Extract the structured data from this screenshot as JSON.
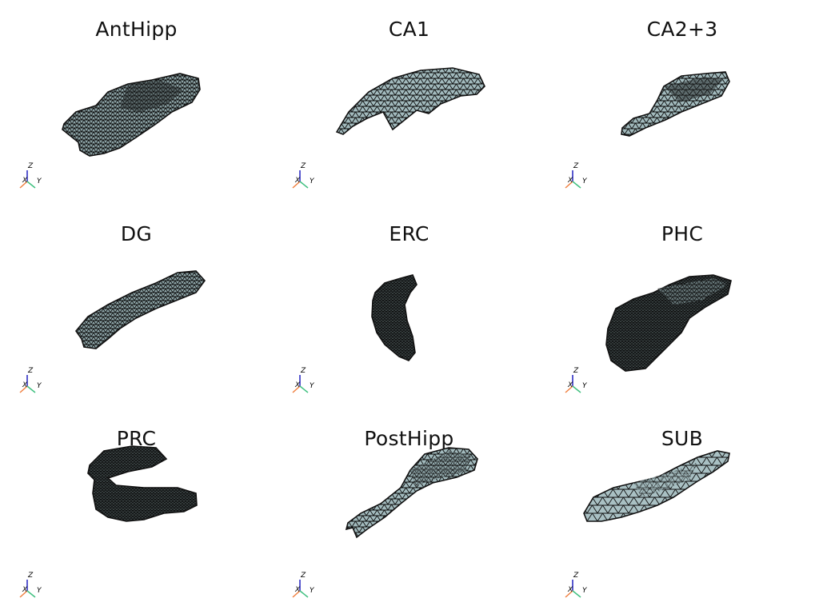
{
  "panels": [
    {
      "title": "AntHipp"
    },
    {
      "title": "CA1"
    },
    {
      "title": "CA2+3"
    },
    {
      "title": "DG"
    },
    {
      "title": "ERC"
    },
    {
      "title": "PHC"
    },
    {
      "title": "PRC"
    },
    {
      "title": "PostHipp"
    },
    {
      "title": "SUB"
    }
  ],
  "axis_labels": {
    "z": "Z",
    "x": "X",
    "y": "Y"
  },
  "colors": {
    "mesh_fill": "#9bb3b6",
    "mesh_edge": "#111111",
    "axis_x": "#f08040",
    "axis_y": "#40c080",
    "axis_z": "#2020c0"
  }
}
